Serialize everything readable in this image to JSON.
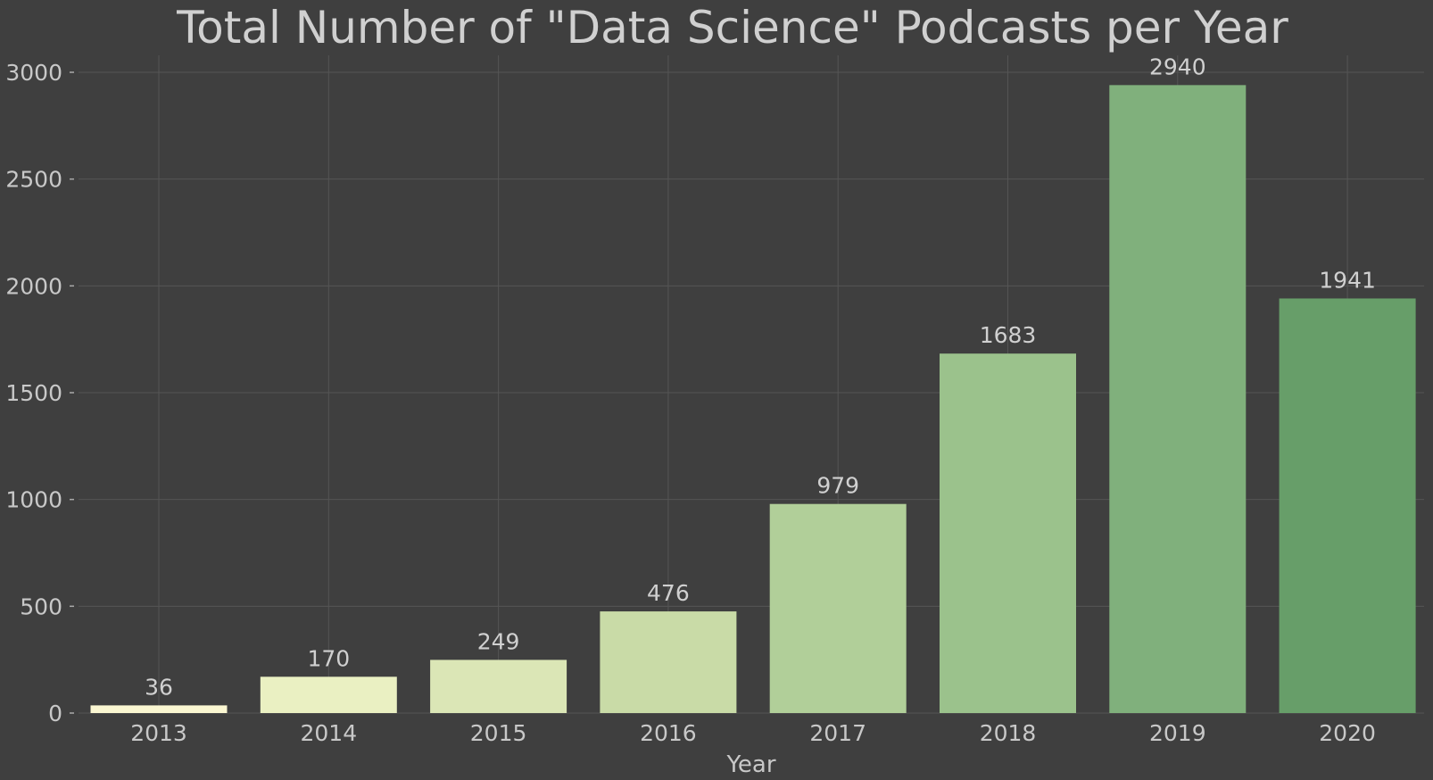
{
  "chart_data": {
    "type": "bar",
    "title": "Total Number of \"Data Science\" Podcasts per Year",
    "xlabel": "Year",
    "ylabel": "",
    "categories": [
      "2013",
      "2014",
      "2015",
      "2016",
      "2017",
      "2018",
      "2019",
      "2020"
    ],
    "values": [
      36,
      170,
      249,
      476,
      979,
      1683,
      2940,
      1941
    ],
    "data_labels": [
      "36",
      "170",
      "249",
      "476",
      "979",
      "1683",
      "2940",
      "1941"
    ],
    "bar_colors": [
      "#fbf7d2",
      "#eaf0c2",
      "#dbe6b6",
      "#c9dba7",
      "#b1cf99",
      "#9bc28c",
      "#80b07c",
      "#679e69"
    ],
    "ylim": [
      0,
      3000
    ],
    "yticks": [
      0,
      500,
      1000,
      1500,
      2000,
      2500,
      3000
    ],
    "ytick_labels": [
      "0",
      "500",
      "1000",
      "1500",
      "2000",
      "2500",
      "3000"
    ],
    "grid": true,
    "legend": "none",
    "colors": {
      "background": "#3f3f3f",
      "grid": "#555555",
      "text": "#c8c8c8"
    }
  }
}
